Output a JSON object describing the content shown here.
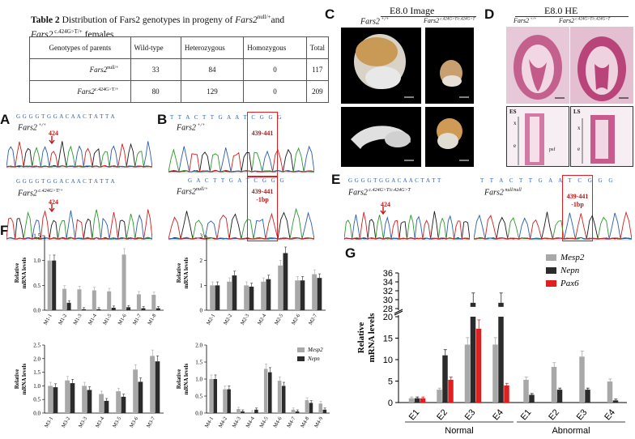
{
  "table2": {
    "caption_bold": "Table 2",
    "caption_rest": " Distribution of Fars2 genotypes in progeny of ",
    "caption_gene1": "Fars2",
    "caption_sup1": "null/+",
    "caption_and": "and",
    "caption_gene2": "Fars2",
    "caption_sup2": " c.424G>T/+",
    "caption_end": " females",
    "headers": [
      "Genotypes of parents",
      "Wild-type",
      "Heterozygous",
      "Homozygous",
      "Total"
    ],
    "rows": [
      {
        "gene": "Fars2",
        "sup": "null/+",
        "wt": "33",
        "het": "84",
        "hom": "0",
        "total": "117"
      },
      {
        "gene": "Fars2",
        "sup": "c.424G>T/+",
        "wt": "80",
        "het": "129",
        "hom": "0",
        "total": "209"
      }
    ]
  },
  "panels": {
    "A": "A",
    "B": "B",
    "C": "C",
    "D": "D",
    "E": "E",
    "F": "F",
    "G": "G"
  },
  "panelA": {
    "seq_top": "G G G G T G G A C A A C T A T T A",
    "label_top_gene": "Fars2",
    "label_top_sup": " +/+",
    "pos_top": "424",
    "seq_bot": "G G G G T G G A C A A C T A T T A",
    "label_bot_gene": "Fars2",
    "label_bot_sup": " c.424G>T/+",
    "pos_bot": "424"
  },
  "panelB": {
    "seq_top": "T T A C T T G A A T C G G G",
    "label_top_gene": "Fars2",
    "label_top_sup": " +/+",
    "box_top": "439-441",
    "seq_bot": "G A C T T G A T C G G G",
    "label_bot_gene": "Fars2",
    "label_bot_sup": "null/+",
    "box_bot1": "439-441",
    "box_bot2": "-1bp"
  },
  "panelC": {
    "title": "E8.0 Image",
    "label_left_gene": "Fars2",
    "label_left_sup": " +/+",
    "label_right_gene": "Fars2",
    "label_right_sup": " c.424G>T/c.424G>T"
  },
  "panelD": {
    "title": "E8.0 HE",
    "label_left_gene": "Fars2",
    "label_left_sup": " +/+",
    "label_right_gene": "Fars2",
    "label_right_sup": " c.424G>T/c.424G>T",
    "inset1_title": "ES",
    "inset2_title": "LS",
    "inset_x": "x",
    "inset_e": "e",
    "inset_psf": "psf"
  },
  "panelE": {
    "seq_left": "G G G G T G G A C A A C T A T T",
    "seq_right": "T T A C T T G A A T C G G G",
    "label_left_gene": "Fars2",
    "label_left_sup": " c.424G>T/c.424G>T",
    "label_right_gene": "Fars2",
    "label_right_sup": " null/null",
    "pos": "424",
    "box1": "439-441",
    "box2": "-1bp"
  },
  "colors": {
    "mesp2": "#a8a8a8",
    "nepn": "#2b2b2b",
    "pax6": "#e02020",
    "red_box": "#e02020"
  },
  "chart_data": [
    {
      "type": "bar",
      "ylabel": "Relative mRNA levels",
      "ylim": [
        0,
        1.5
      ],
      "yticks": [
        "0.0",
        "0.5",
        "1.0",
        "1.5"
      ],
      "categories": [
        "M1-1",
        "M1-2",
        "M1-3",
        "M1-4",
        "M1-5",
        "M1-6",
        "M1-7",
        "M1-8"
      ],
      "series": [
        {
          "name": "Mesp2",
          "values": [
            1.0,
            0.43,
            0.42,
            0.4,
            0.38,
            1.12,
            0.32,
            0.31
          ]
        },
        {
          "name": "Nepn",
          "values": [
            1.0,
            0.15,
            0.02,
            0.02,
            0.05,
            0.06,
            0.04,
            0.04
          ]
        }
      ]
    },
    {
      "type": "bar",
      "ylabel": "Relative mRNA levels",
      "ylim": [
        0,
        3
      ],
      "yticks": [
        "0",
        "1",
        "2",
        "3"
      ],
      "categories": [
        "M2-1",
        "M2-2",
        "M2-3",
        "M2-4",
        "M2-5",
        "M2-6",
        "M2-7"
      ],
      "series": [
        {
          "name": "Mesp2",
          "values": [
            1.0,
            1.15,
            1.0,
            1.15,
            1.8,
            1.2,
            1.45
          ]
        },
        {
          "name": "Nepn",
          "values": [
            1.0,
            1.4,
            0.95,
            1.25,
            2.3,
            1.2,
            1.3
          ]
        }
      ]
    },
    {
      "type": "bar",
      "ylabel": "Relative mRNA levels",
      "ylim": [
        0,
        2.5
      ],
      "yticks": [
        "0.0",
        "0.5",
        "1.0",
        "1.5",
        "2.0",
        "2.5"
      ],
      "categories": [
        "M3-1",
        "M3-2",
        "M3-3",
        "M3-4",
        "M3-5",
        "M3-6",
        "M3-7"
      ],
      "series": [
        {
          "name": "Mesp2",
          "values": [
            1.0,
            1.2,
            1.0,
            0.7,
            0.8,
            1.6,
            2.1
          ]
        },
        {
          "name": "Nepn",
          "values": [
            0.95,
            1.1,
            0.85,
            0.45,
            0.6,
            1.15,
            1.9
          ]
        }
      ]
    },
    {
      "type": "bar",
      "ylabel": "Relative mRNA levels",
      "ylim": [
        0,
        2.0
      ],
      "yticks": [
        "0.0",
        "0.5",
        "1.0",
        "1.5",
        "2.0"
      ],
      "legend": [
        "Mesp2",
        "Nepn"
      ],
      "categories": [
        "M4-1",
        "M4-2",
        "M4-3",
        "M4-4",
        "M4-5",
        "M4-6",
        "M4-7",
        "M4-8",
        "M4-9"
      ],
      "series": [
        {
          "name": "Mesp2",
          "values": [
            1.0,
            0.7,
            0.12,
            0.03,
            1.3,
            0.95,
            0.1,
            0.38,
            0.28
          ]
        },
        {
          "name": "Nepn",
          "values": [
            1.0,
            0.7,
            0.05,
            0.1,
            1.2,
            0.8,
            0.05,
            0.3,
            0.1
          ]
        }
      ]
    },
    {
      "type": "bar",
      "ylabel": "Relative mRNA levels",
      "yticks_low": [
        "0",
        "5",
        "10",
        "15",
        "20"
      ],
      "yticks_high": [
        "28",
        "30",
        "32",
        "34",
        "36"
      ],
      "ylim": [
        0,
        36
      ],
      "categories": [
        "E1",
        "E2",
        "E3",
        "E4",
        "E1",
        "E2",
        "E3",
        "E4"
      ],
      "groups": [
        "Normal",
        "Abnormal"
      ],
      "legend": [
        "Mesp2",
        "Nepn",
        "Pax6"
      ],
      "series": [
        {
          "name": "Mesp2",
          "values": [
            1.0,
            3.0,
            13.5,
            13.5,
            5.3,
            8.3,
            10.7,
            4.9
          ]
        },
        {
          "name": "Nepn",
          "values": [
            1.0,
            11.0,
            29.3,
            29.3,
            1.8,
            3.0,
            3.0,
            0.5
          ]
        },
        {
          "name": "Pax6",
          "values": [
            1.0,
            5.3,
            17.2,
            4.0,
            null,
            null,
            null,
            null
          ]
        }
      ]
    }
  ]
}
